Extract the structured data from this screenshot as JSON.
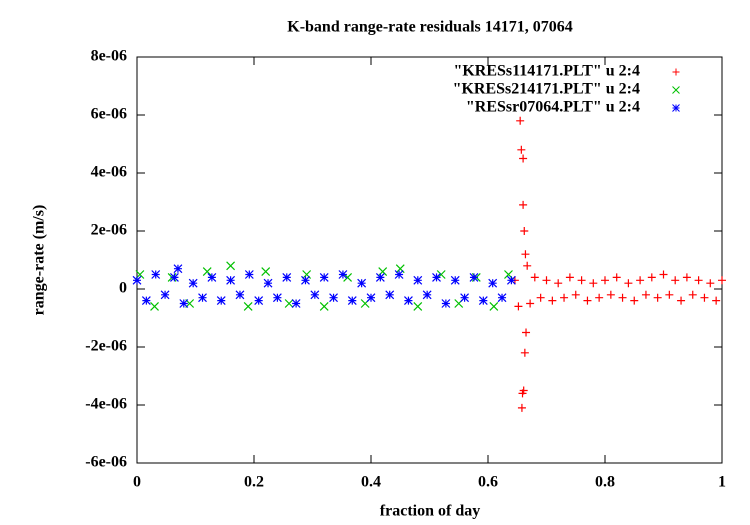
{
  "chart_data": {
    "type": "scatter",
    "title": "K-band range-rate residuals 14171, 07064",
    "x_label": "fraction of day",
    "y_label": "range-rate (m/s)",
    "xlim": [
      0,
      1
    ],
    "xticks": [
      0,
      0.2,
      0.4,
      0.6,
      0.8,
      1
    ],
    "ylim": [
      -6e-06,
      8e-06
    ],
    "yticks": [
      {
        "value": -6e-06,
        "label": "-6e-06"
      },
      {
        "value": -4e-06,
        "label": "-4e-06"
      },
      {
        "value": -2e-06,
        "label": "-2e-06"
      },
      0,
      {
        "value": 2e-06,
        "label": "2e-06"
      },
      {
        "value": 4e-06,
        "label": "4e-06"
      },
      {
        "value": 6e-06,
        "label": "6e-06"
      },
      {
        "value": 8e-06,
        "label": "8e-06"
      }
    ],
    "legend": "top-right",
    "series": [
      {
        "name": "\"KRESs114171.PLT\" u 2:4",
        "color": "#ff0000",
        "marker": "plus",
        "x": [
          0.646,
          0.652,
          0.655,
          0.657,
          0.658,
          0.659,
          0.66,
          0.66,
          0.661,
          0.662,
          0.663,
          0.664,
          0.665,
          0.667,
          0.672,
          0.68,
          0.69,
          0.7,
          0.71,
          0.72,
          0.73,
          0.74,
          0.75,
          0.76,
          0.77,
          0.78,
          0.79,
          0.8,
          0.81,
          0.82,
          0.83,
          0.84,
          0.85,
          0.86,
          0.87,
          0.88,
          0.89,
          0.9,
          0.91,
          0.92,
          0.93,
          0.94,
          0.95,
          0.96,
          0.97,
          0.98,
          0.99,
          1.0
        ],
        "values": [
          3e-07,
          -6e-07,
          5.8e-06,
          4.8e-06,
          -4.1e-06,
          -3.6e-06,
          2.9e-06,
          4.5e-06,
          -3.5e-06,
          2e-06,
          -2.2e-06,
          1.2e-06,
          -1.5e-06,
          8e-07,
          -5e-07,
          4e-07,
          -3e-07,
          3e-07,
          -4e-07,
          2e-07,
          -3e-07,
          4e-07,
          -2e-07,
          3e-07,
          -4e-07,
          2e-07,
          -3e-07,
          3e-07,
          -2e-07,
          4e-07,
          -3e-07,
          2e-07,
          -4e-07,
          3e-07,
          -2e-07,
          4e-07,
          -3e-07,
          5e-07,
          -2e-07,
          3e-07,
          -4e-07,
          4e-07,
          -2e-07,
          3e-07,
          -3e-07,
          2e-07,
          -4e-07,
          3e-07
        ]
      },
      {
        "name": "\"KRESs214171.PLT\" u 2:4",
        "color": "#00c000",
        "marker": "cross",
        "x": [
          0.005,
          0.03,
          0.06,
          0.09,
          0.12,
          0.16,
          0.19,
          0.22,
          0.26,
          0.29,
          0.32,
          0.36,
          0.39,
          0.42,
          0.45,
          0.48,
          0.52,
          0.55,
          0.58,
          0.61,
          0.635
        ],
        "values": [
          5e-07,
          -6e-07,
          4e-07,
          -5e-07,
          6e-07,
          8e-07,
          -6e-07,
          6e-07,
          -5e-07,
          5e-07,
          -6e-07,
          4e-07,
          -5e-07,
          6e-07,
          7e-07,
          -6e-07,
          5e-07,
          -5e-07,
          4e-07,
          -6e-07,
          5e-07
        ]
      },
      {
        "name": "\"RESsr07064.PLT\" u 2:4",
        "color": "#0000ff",
        "marker": "star",
        "x": [
          0.0,
          0.016,
          0.032,
          0.048,
          0.064,
          0.07,
          0.08,
          0.096,
          0.112,
          0.128,
          0.144,
          0.16,
          0.176,
          0.192,
          0.208,
          0.224,
          0.24,
          0.256,
          0.272,
          0.288,
          0.304,
          0.32,
          0.336,
          0.352,
          0.368,
          0.384,
          0.4,
          0.416,
          0.432,
          0.448,
          0.464,
          0.48,
          0.496,
          0.512,
          0.528,
          0.544,
          0.56,
          0.576,
          0.592,
          0.608,
          0.624,
          0.64
        ],
        "values": [
          3e-07,
          -4e-07,
          5e-07,
          -2e-07,
          4e-07,
          7e-07,
          -5e-07,
          2e-07,
          -3e-07,
          4e-07,
          -4e-07,
          3e-07,
          -2e-07,
          5e-07,
          -4e-07,
          2e-07,
          -3e-07,
          4e-07,
          -5e-07,
          3e-07,
          -2e-07,
          4e-07,
          -3e-07,
          5e-07,
          -4e-07,
          2e-07,
          -3e-07,
          4e-07,
          -2e-07,
          5e-07,
          -4e-07,
          3e-07,
          -2e-07,
          4e-07,
          -5e-07,
          3e-07,
          -3e-07,
          4e-07,
          -4e-07,
          2e-07,
          -3e-07,
          3e-07
        ]
      }
    ]
  }
}
